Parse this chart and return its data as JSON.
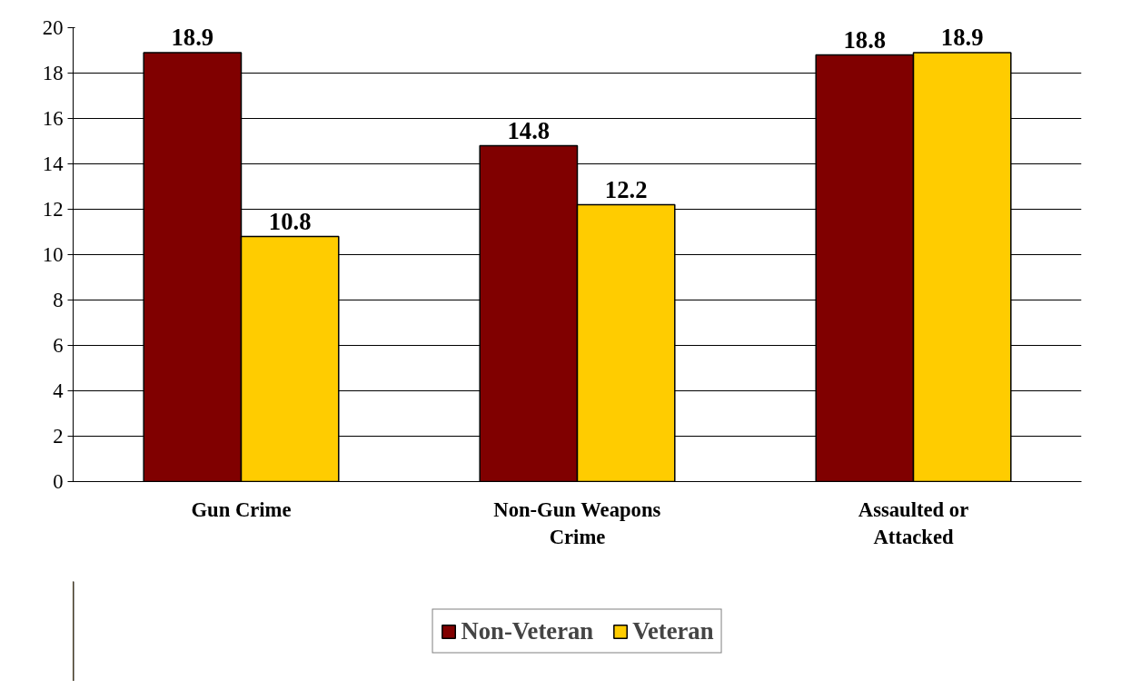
{
  "chart_data": {
    "type": "bar",
    "categories": [
      "Gun Crime",
      "Non-Gun Weapons Crime",
      "Assaulted or Attacked"
    ],
    "series": [
      {
        "name": "Non-Veteran",
        "color": "#800000",
        "values": [
          18.9,
          14.8,
          18.8
        ]
      },
      {
        "name": "Veteran",
        "color": "#ffcc00",
        "values": [
          10.8,
          12.2,
          18.9
        ]
      }
    ],
    "ylim": [
      0,
      20
    ],
    "yticks": [
      0,
      2,
      4,
      6,
      8,
      10,
      12,
      14,
      16,
      18,
      20
    ],
    "grid": "y",
    "legend": "bottom",
    "data_labels": true
  }
}
